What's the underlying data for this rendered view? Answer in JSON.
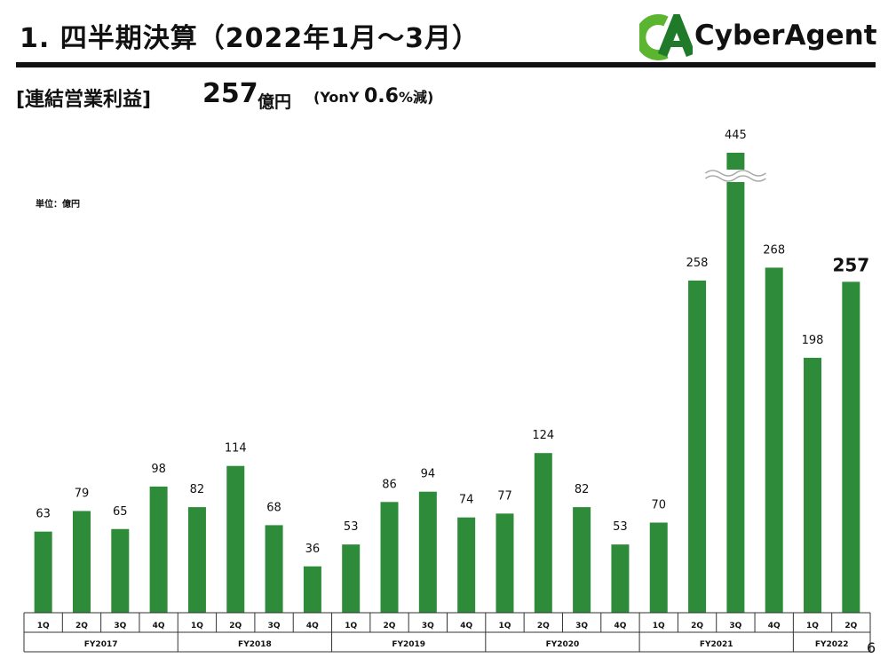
{
  "header": {
    "title": "1. 四半期決算（2022年1月～3月）",
    "logo_text": "CyberAgent"
  },
  "summary": {
    "label": "[連結営業利益]",
    "value": "257",
    "unit": "億円",
    "yoy_prefix": "(YonY ",
    "yoy_value": "0.6",
    "yoy_suffix": "%減)"
  },
  "unit_note": "単位：億円",
  "page_number": "6",
  "colors": {
    "bar": "#2e8b3a",
    "logo_green": "#5cb531",
    "logo_dark": "#1f7a2a"
  },
  "chart_data": {
    "type": "bar",
    "categories": [
      "1Q",
      "2Q",
      "3Q",
      "4Q",
      "1Q",
      "2Q",
      "3Q",
      "4Q",
      "1Q",
      "2Q",
      "3Q",
      "4Q",
      "1Q",
      "2Q",
      "3Q",
      "4Q",
      "1Q",
      "2Q",
      "3Q",
      "4Q",
      "1Q",
      "2Q"
    ],
    "values": [
      63,
      79,
      65,
      98,
      82,
      114,
      68,
      36,
      53,
      86,
      94,
      74,
      77,
      124,
      82,
      53,
      70,
      258,
      445,
      268,
      198,
      257
    ],
    "groups": [
      {
        "label": "FY2017",
        "count": 4
      },
      {
        "label": "FY2018",
        "count": 4
      },
      {
        "label": "FY2019",
        "count": 4
      },
      {
        "label": "FY2020",
        "count": 4
      },
      {
        "label": "FY2021",
        "count": 4
      },
      {
        "label": "FY2022",
        "count": 2
      }
    ],
    "axis_break_at_index": 18,
    "highlight_index": 21,
    "title": "",
    "xlabel": "",
    "ylabel": ""
  }
}
